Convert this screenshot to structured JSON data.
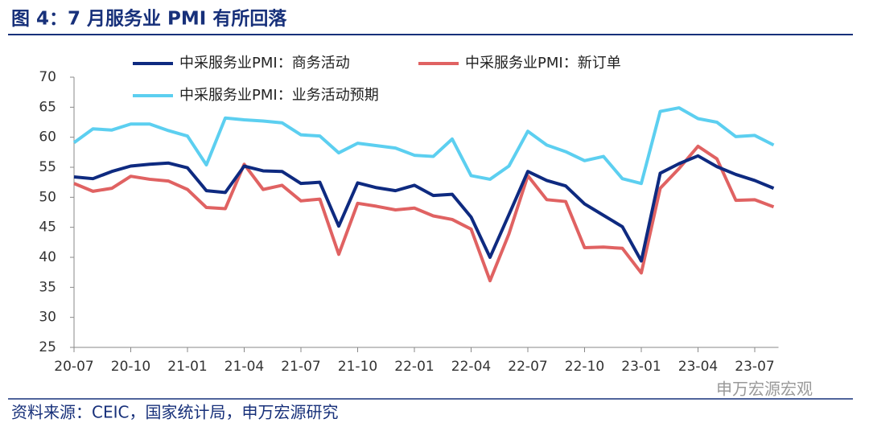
{
  "title": "图 4：7 月服务业 PMI 有所回落",
  "source": "资料来源：CEIC，国家统计局，申万宏源研究",
  "watermark": "申万宏源宏观",
  "chart_data": {
    "type": "line",
    "categories": [
      "20-07",
      null,
      null,
      "20-10",
      null,
      null,
      "21-01",
      null,
      null,
      "21-04",
      null,
      null,
      "21-07",
      null,
      null,
      "21-10",
      null,
      null,
      "22-01",
      null,
      null,
      "22-04",
      null,
      null,
      "22-07",
      null,
      null,
      "22-10",
      null,
      null,
      "23-01",
      null,
      null,
      "23-04",
      null,
      null,
      "23-07",
      null
    ],
    "series": [
      {
        "name": "中采服务业PMI：商务活动",
        "color": "#0e2a80",
        "values": [
          53.4,
          53.1,
          54.3,
          55.2,
          55.5,
          55.7,
          54.9,
          51.1,
          50.8,
          55.2,
          54.4,
          54.3,
          52.3,
          52.5,
          45.2,
          52.4,
          51.6,
          51.1,
          52.0,
          50.3,
          50.5,
          46.7,
          40.0,
          47.1,
          54.3,
          52.8,
          51.9,
          48.9,
          47.0,
          45.1,
          39.4,
          54.0,
          55.6,
          56.9,
          55.1,
          53.8,
          52.8,
          51.5
        ]
      },
      {
        "name": "中采服务业PMI：新订单",
        "color": "#e06262",
        "values": [
          52.3,
          51.0,
          51.5,
          53.5,
          53.0,
          52.7,
          51.3,
          48.3,
          48.1,
          55.5,
          51.3,
          52.0,
          49.4,
          49.7,
          40.5,
          49.0,
          48.5,
          47.9,
          48.2,
          46.9,
          46.3,
          44.7,
          36.1,
          43.9,
          53.6,
          49.6,
          49.3,
          41.6,
          41.7,
          41.5,
          37.4,
          51.5,
          54.8,
          58.5,
          56.4,
          49.5,
          49.6,
          48.4
        ]
      },
      {
        "name": "中采服务业PMI：业务活动预期",
        "color": "#5ccff0",
        "values": [
          59.1,
          61.4,
          61.2,
          62.2,
          62.2,
          61.1,
          60.2,
          55.4,
          63.2,
          62.9,
          62.7,
          62.4,
          60.4,
          60.2,
          57.4,
          59.0,
          58.6,
          58.2,
          57.0,
          56.8,
          59.7,
          53.6,
          53.0,
          55.2,
          61.0,
          58.7,
          57.6,
          56.1,
          56.8,
          53.1,
          52.3,
          64.3,
          64.9,
          63.1,
          62.5,
          60.1,
          60.3,
          58.7
        ]
      }
    ],
    "ylim": [
      25,
      70
    ],
    "yticks": [
      25,
      30,
      35,
      40,
      45,
      50,
      55,
      60,
      65,
      70
    ],
    "grid": false,
    "legend": "top"
  }
}
